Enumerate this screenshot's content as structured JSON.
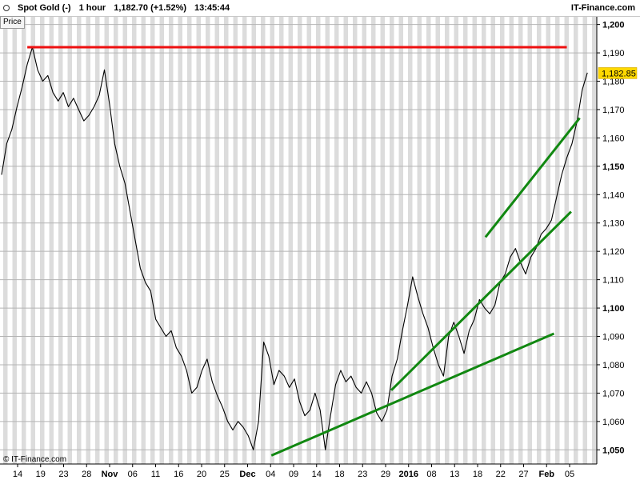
{
  "header": {
    "instrument": "Spot Gold (-)",
    "timeframe": "1 hour",
    "last": "1,182.70 (+1.52%)",
    "time": "13:45:44",
    "brand": "IT-Finance.com",
    "menu_icon": "triangle-down-icon"
  },
  "price_tab": "Price",
  "copyright": "© IT-Finance.com",
  "colors": {
    "price_line": "#000000",
    "resistance": "#ee1111",
    "trendline": "#118811",
    "last_price_bg": "#ffd800",
    "stripe": "#dcdcdc"
  },
  "chart_data": {
    "type": "line",
    "ylim": [
      1045,
      1203
    ],
    "last_price_label": "1,182.85",
    "y_ticks": [
      "1,050",
      "1,060",
      "1,070",
      "1,080",
      "1,090",
      "1,100",
      "1,110",
      "1,120",
      "1,130",
      "1,140",
      "1,150",
      "1,160",
      "1,170",
      "1,180",
      "1,190",
      "1,200"
    ],
    "y_ticks_bold": [
      "1,050",
      "1,100",
      "1,150",
      "1,200"
    ],
    "x_ticks": [
      "14",
      "19",
      "23",
      "28",
      "Nov",
      "06",
      "11",
      "16",
      "20",
      "25",
      "Dec",
      "04",
      "09",
      "14",
      "18",
      "23",
      "29",
      "2016",
      "08",
      "13",
      "18",
      "22",
      "27",
      "Feb",
      "05"
    ],
    "x_ticks_bold": [
      "Nov",
      "Dec",
      "2016",
      "Feb"
    ],
    "series": [
      {
        "values": [
          [
            0,
            1147
          ],
          [
            1,
            1158
          ],
          [
            2,
            1163
          ],
          [
            3,
            1171
          ],
          [
            4,
            1178
          ],
          [
            5,
            1186
          ],
          [
            6,
            1192
          ],
          [
            7,
            1184
          ],
          [
            8,
            1180
          ],
          [
            9,
            1182
          ],
          [
            10,
            1176
          ],
          [
            11,
            1173
          ],
          [
            12,
            1176
          ],
          [
            13,
            1171
          ],
          [
            14,
            1174
          ],
          [
            15,
            1170
          ],
          [
            16,
            1166
          ],
          [
            17,
            1168
          ],
          [
            18,
            1171
          ],
          [
            19,
            1175
          ],
          [
            20,
            1184
          ],
          [
            21,
            1172
          ],
          [
            22,
            1158
          ],
          [
            23,
            1150
          ],
          [
            24,
            1144
          ],
          [
            25,
            1134
          ],
          [
            26,
            1124
          ],
          [
            27,
            1114
          ],
          [
            28,
            1109
          ],
          [
            29,
            1106
          ],
          [
            30,
            1096
          ],
          [
            31,
            1093
          ],
          [
            32,
            1090
          ],
          [
            33,
            1092
          ],
          [
            34,
            1086
          ],
          [
            35,
            1083
          ],
          [
            36,
            1078
          ],
          [
            37,
            1070
          ],
          [
            38,
            1072
          ],
          [
            39,
            1078
          ],
          [
            40,
            1082
          ],
          [
            41,
            1074
          ],
          [
            42,
            1069
          ],
          [
            43,
            1065
          ],
          [
            44,
            1060
          ],
          [
            45,
            1057
          ],
          [
            46,
            1060
          ],
          [
            47,
            1058
          ],
          [
            48,
            1055
          ],
          [
            49,
            1050
          ],
          [
            50,
            1060
          ],
          [
            51,
            1088
          ],
          [
            52,
            1083
          ],
          [
            53,
            1073
          ],
          [
            54,
            1078
          ],
          [
            55,
            1076
          ],
          [
            56,
            1072
          ],
          [
            57,
            1075
          ],
          [
            58,
            1067
          ],
          [
            59,
            1062
          ],
          [
            60,
            1064
          ],
          [
            61,
            1070
          ],
          [
            62,
            1064
          ],
          [
            63,
            1050
          ],
          [
            64,
            1062
          ],
          [
            65,
            1073
          ],
          [
            66,
            1078
          ],
          [
            67,
            1074
          ],
          [
            68,
            1076
          ],
          [
            69,
            1072
          ],
          [
            70,
            1070
          ],
          [
            71,
            1074
          ],
          [
            72,
            1070
          ],
          [
            73,
            1063
          ],
          [
            74,
            1060
          ],
          [
            75,
            1064
          ],
          [
            76,
            1076
          ],
          [
            77,
            1082
          ],
          [
            78,
            1092
          ],
          [
            79,
            1101
          ],
          [
            80,
            1111
          ],
          [
            81,
            1104
          ],
          [
            82,
            1098
          ],
          [
            83,
            1093
          ],
          [
            84,
            1086
          ],
          [
            85,
            1080
          ],
          [
            86,
            1076
          ],
          [
            87,
            1090
          ],
          [
            88,
            1095
          ],
          [
            89,
            1090
          ],
          [
            90,
            1084
          ],
          [
            91,
            1092
          ],
          [
            92,
            1096
          ],
          [
            93,
            1103
          ],
          [
            94,
            1100
          ],
          [
            95,
            1098
          ],
          [
            96,
            1101
          ],
          [
            97,
            1109
          ],
          [
            98,
            1112
          ],
          [
            99,
            1118
          ],
          [
            100,
            1121
          ],
          [
            101,
            1116
          ],
          [
            102,
            1112
          ],
          [
            103,
            1118
          ],
          [
            104,
            1121
          ],
          [
            105,
            1126
          ],
          [
            106,
            1128
          ],
          [
            107,
            1131
          ],
          [
            108,
            1139
          ],
          [
            109,
            1147
          ],
          [
            110,
            1153
          ],
          [
            111,
            1158
          ],
          [
            112,
            1166
          ],
          [
            113,
            1177
          ],
          [
            114,
            1183
          ]
        ]
      }
    ],
    "annotations": {
      "resistance": {
        "y": 1192,
        "x_start": 6,
        "x_end": 132
      },
      "trendlines": [
        {
          "from": [
            63,
            1048
          ],
          "to": [
            129,
            1091
          ]
        },
        {
          "from": [
            91,
            1071
          ],
          "to": [
            133,
            1134
          ]
        },
        {
          "from": [
            113,
            1125
          ],
          "to": [
            135,
            1167
          ]
        }
      ]
    }
  }
}
